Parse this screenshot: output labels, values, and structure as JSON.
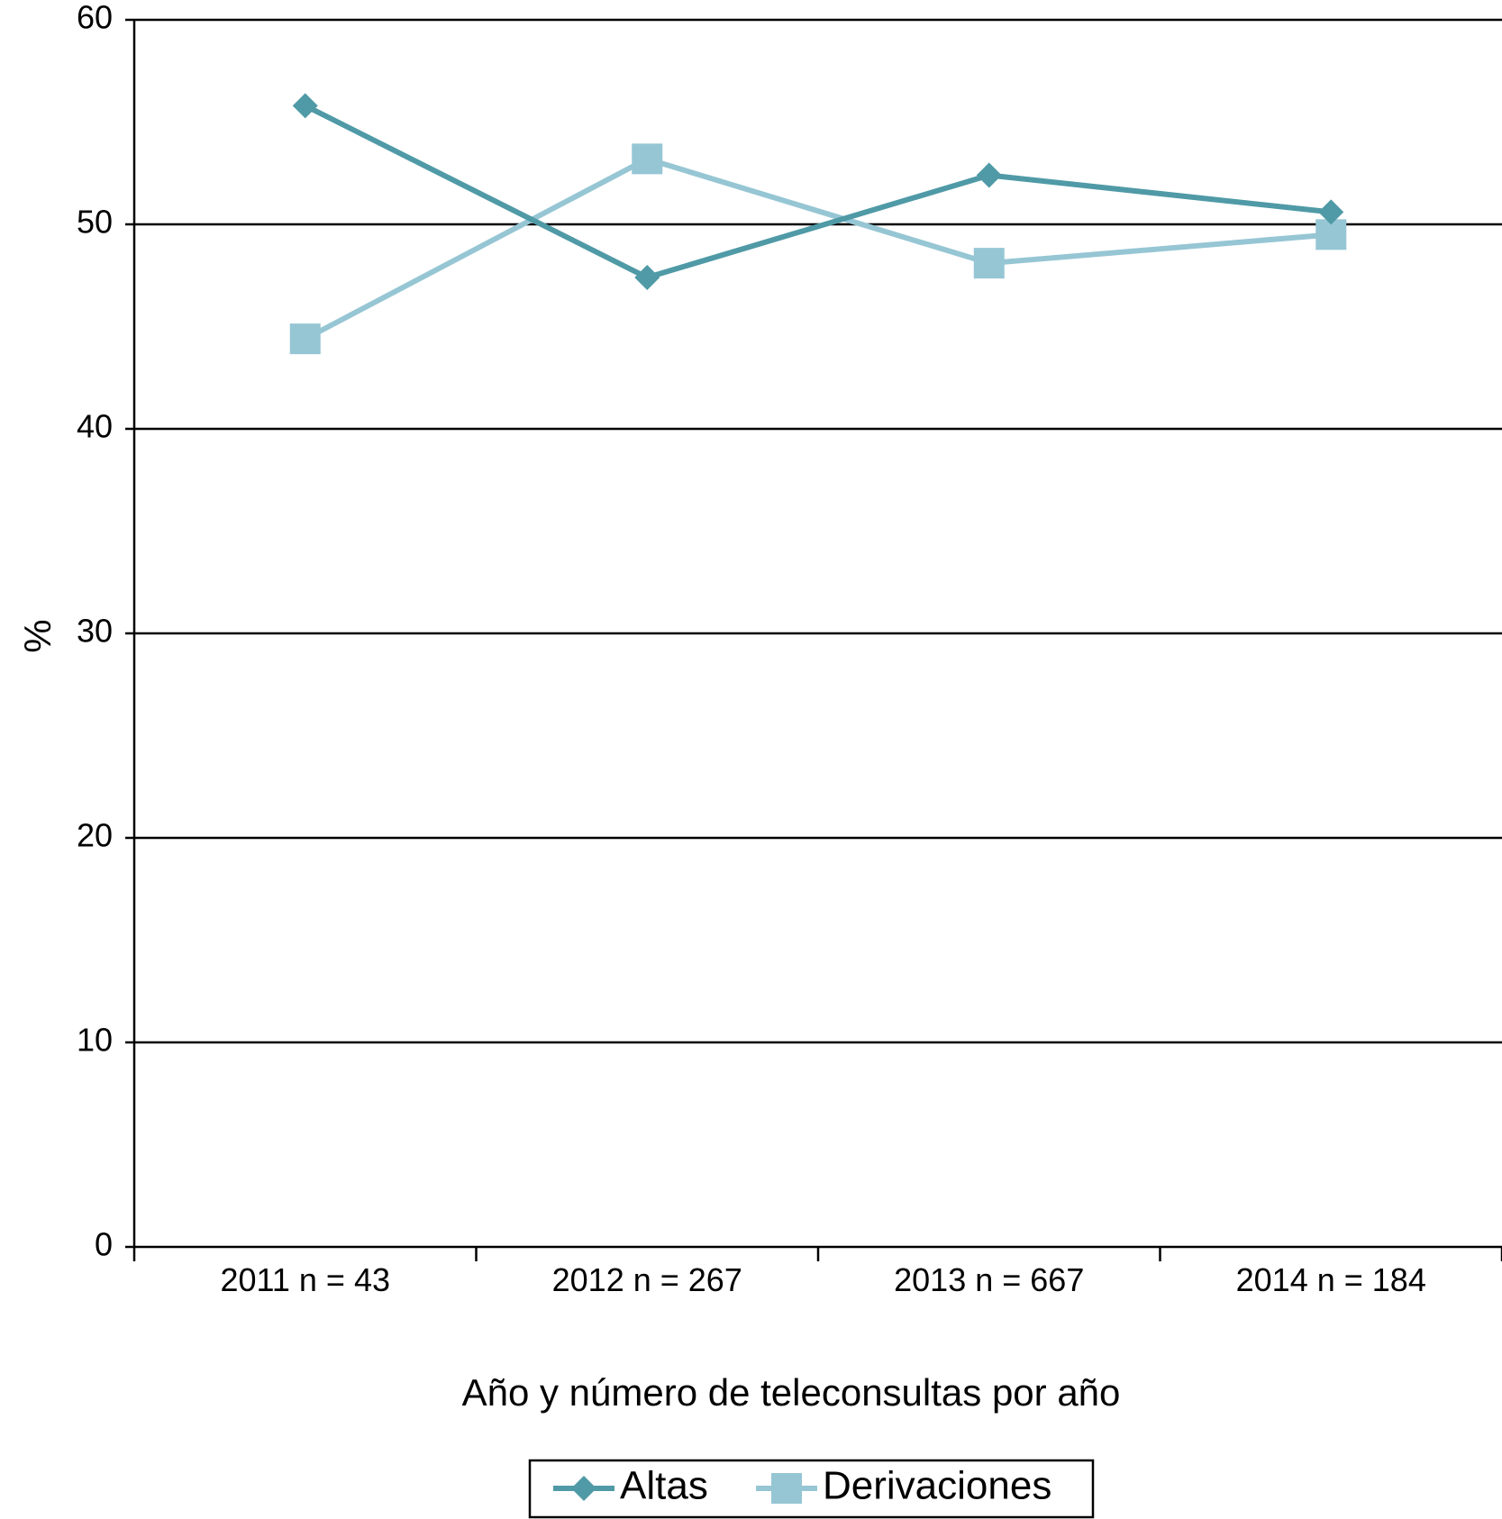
{
  "chart_data": {
    "type": "line",
    "title": "",
    "xlabel": "Año y número de teleconsultas por año",
    "ylabel": "%",
    "ylim": [
      0,
      60
    ],
    "yticks": [
      0,
      10,
      20,
      30,
      40,
      50,
      60
    ],
    "categories": [
      "2011 n = 43",
      "2012 n = 267",
      "2013 n = 667",
      "2014 n = 184"
    ],
    "grid": "horizontal",
    "legend_position": "bottom-center",
    "series": [
      {
        "name": "Altas",
        "values": [
          55.8,
          47.4,
          52.4,
          50.6
        ],
        "color": "#4f9aa6",
        "marker": "diamond"
      },
      {
        "name": "Derivaciones",
        "values": [
          44.4,
          53.2,
          48.1,
          49.5
        ],
        "color": "#96c6d4",
        "marker": "square"
      }
    ]
  }
}
